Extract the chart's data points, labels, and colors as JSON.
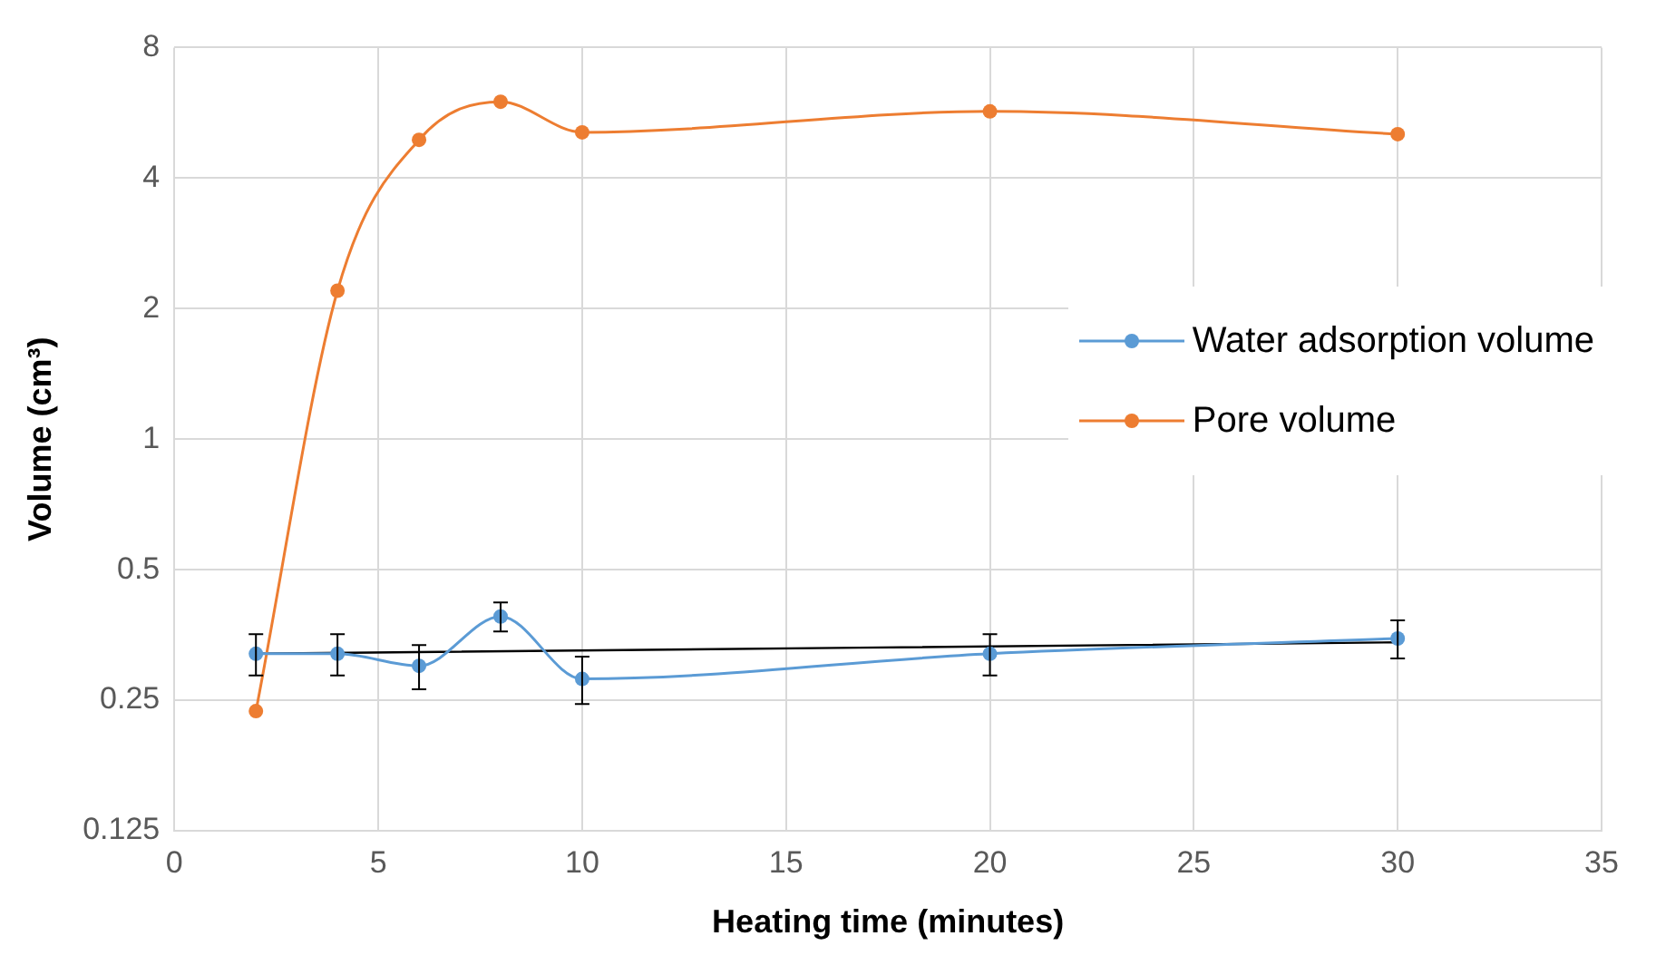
{
  "chart_data": {
    "type": "line",
    "xlabel": "Heating time (minutes)",
    "ylabel": "Volume (cm³)",
    "x": [
      2,
      4,
      6,
      8,
      10,
      20,
      30
    ],
    "series": [
      {
        "name": "Water adsorption volume",
        "color": "#5b9bd5",
        "values": [
          0.32,
          0.32,
          0.3,
          0.39,
          0.28,
          0.32,
          0.347
        ],
        "errors": [
          0.035,
          0.035,
          0.035,
          0.03,
          0.035,
          0.035,
          0.035
        ]
      },
      {
        "name": "Pore volume",
        "color": "#ed7d31",
        "values": [
          0.236,
          2.2,
          4.9,
          6.0,
          5.1,
          5.7,
          5.05
        ]
      },
      {
        "type": "line",
        "color": "#000000",
        "x": [
          2,
          30
        ],
        "values": [
          0.32,
          0.34
        ],
        "marker": "none"
      }
    ],
    "xlim": [
      0,
      35
    ],
    "xticks": [
      0,
      5,
      10,
      15,
      20,
      25,
      30,
      35
    ],
    "ylim": [
      0.125,
      8
    ],
    "yticks": [
      0.125,
      0.25,
      0.5,
      1,
      2,
      4,
      8
    ],
    "log": "y",
    "grid": true,
    "legend": "right",
    "marker": "circle"
  }
}
